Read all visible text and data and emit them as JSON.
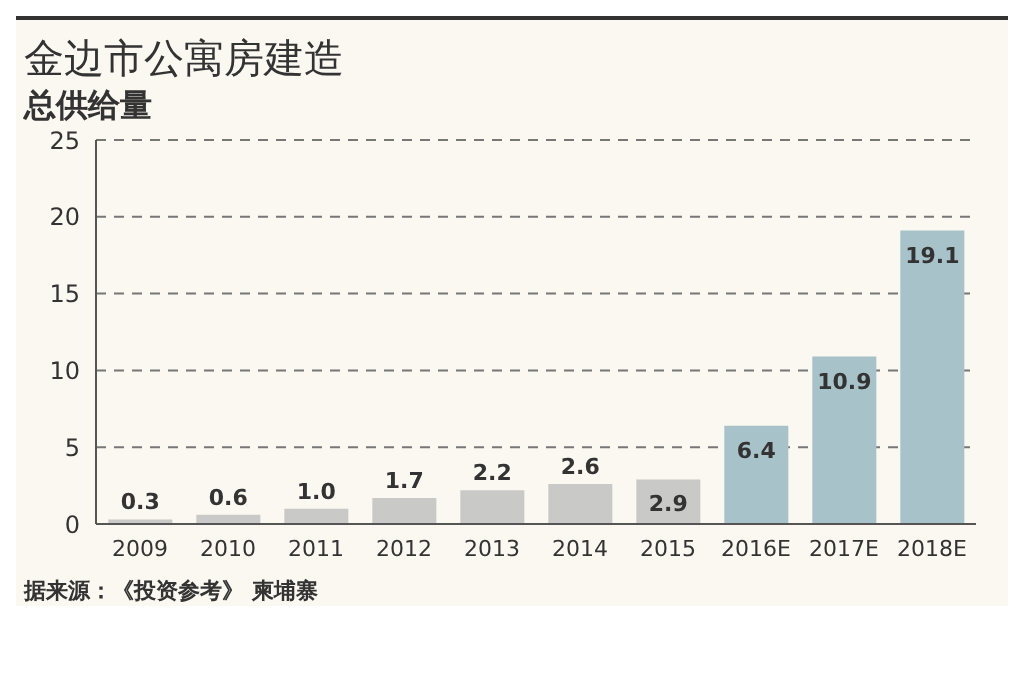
{
  "chart_data": {
    "type": "bar",
    "title": "金边市公寓房建造",
    "subtitle": "总供给量",
    "categories": [
      "2009",
      "2010",
      "2011",
      "2012",
      "2013",
      "2014",
      "2015",
      "2016E",
      "2017E",
      "2018E"
    ],
    "values": [
      0.3,
      0.6,
      1.0,
      1.7,
      2.2,
      2.6,
      2.9,
      6.4,
      10.9,
      19.1
    ],
    "value_labels": [
      "0.3",
      "0.6",
      "1.0",
      "1.7",
      "2.2",
      "2.6",
      "2.9",
      "6.4",
      "10.9",
      "19.1"
    ],
    "colors": [
      "#c9c9c7",
      "#c9c9c7",
      "#c9c9c7",
      "#c9c9c7",
      "#c9c9c7",
      "#c9c9c7",
      "#c9c9c7",
      "#a8c2ca",
      "#a8c2ca",
      "#a8c2ca"
    ],
    "ylim": [
      0,
      25
    ],
    "yticks": [
      0,
      5,
      10,
      15,
      20,
      25
    ],
    "grid": "y",
    "annotations": [
      "据来源：《投资参考》 柬埔寨"
    ]
  }
}
